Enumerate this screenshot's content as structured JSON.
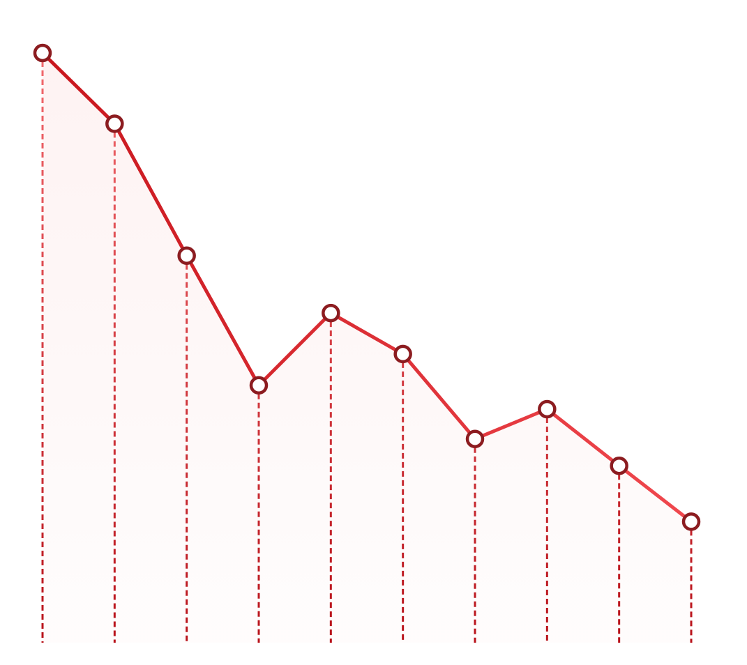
{
  "colors": {
    "line_start": "#c8161d",
    "line_end": "#f0484e",
    "marker_stroke": "#8c1c20",
    "marker_fill": "#ffffff",
    "dash_top": "#f26a6e",
    "dash_bottom": "#b8121a",
    "fill": "#fdeeee"
  },
  "chart_data": {
    "type": "line",
    "title": "",
    "xlabel": "",
    "ylabel": "",
    "x": [
      1,
      2,
      3,
      4,
      5,
      6,
      7,
      8,
      9,
      10
    ],
    "series": [
      {
        "values": [
          100,
          90.5,
          72.8,
          55.4,
          65.1,
          59.6,
          48.2,
          52.2,
          44.6,
          37.1
        ]
      }
    ],
    "ylim": [
      0,
      100
    ],
    "grid": false,
    "legend": false,
    "markers": "hollow-circle",
    "drop_lines": "dashed"
  }
}
